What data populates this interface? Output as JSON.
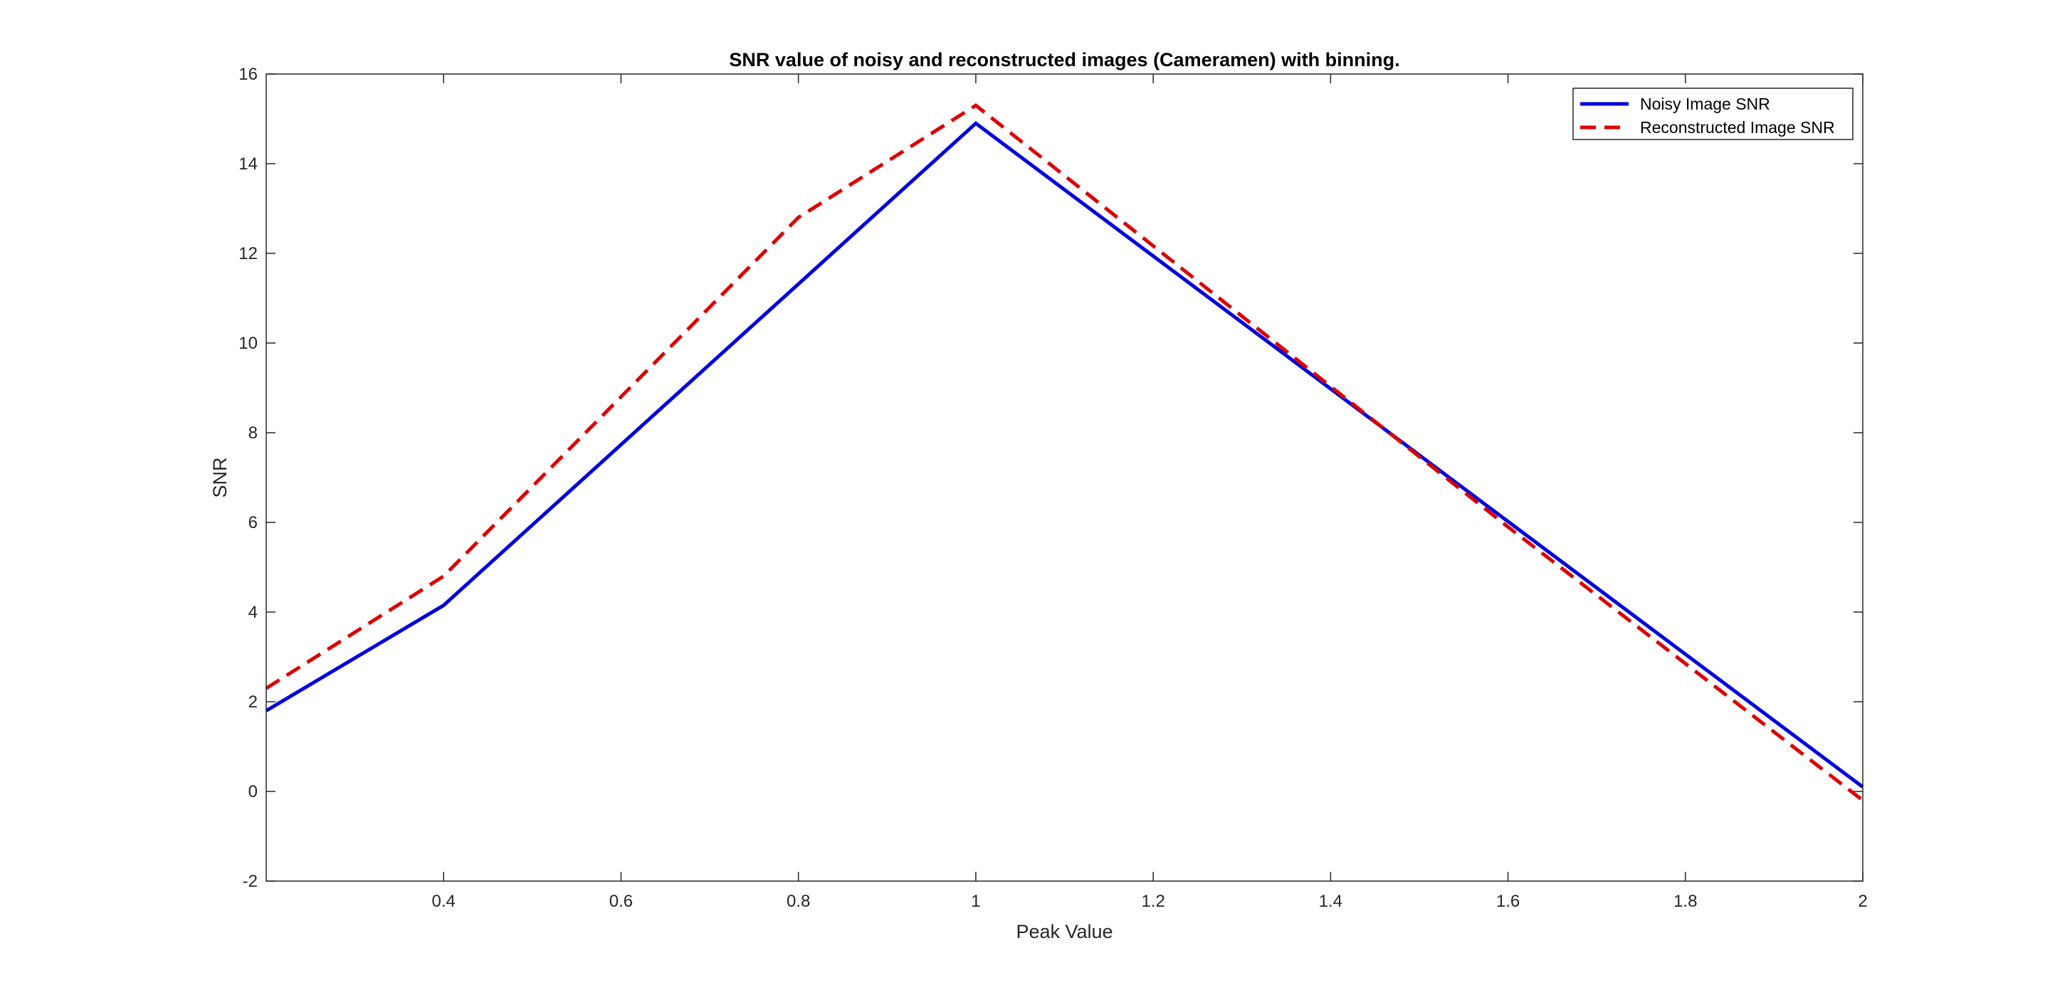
{
  "chart_data": {
    "type": "line",
    "title": "SNR value of noisy and reconstructed images (Cameramen) with binning.",
    "xlabel": "Peak Value",
    "ylabel": "SNR",
    "xlim": [
      0.2,
      2
    ],
    "ylim": [
      -2,
      16
    ],
    "xticks": [
      0.4,
      0.6,
      0.8,
      1,
      1.2,
      1.4,
      1.6,
      1.8,
      2
    ],
    "xtick_labels": [
      "0.4",
      "0.6",
      "0.8",
      "1",
      "1.2",
      "1.4",
      "1.6",
      "1.8",
      "2"
    ],
    "yticks": [
      -2,
      0,
      2,
      4,
      6,
      8,
      10,
      12,
      14,
      16
    ],
    "ytick_labels": [
      "-2",
      "0",
      "2",
      "4",
      "6",
      "8",
      "10",
      "12",
      "14",
      "16"
    ],
    "grid": false,
    "legend_position": "top-right",
    "series": [
      {
        "name": "Noisy Image SNR",
        "color": "#0000dd",
        "style": "solid",
        "x": [
          0.2,
          0.4,
          1,
          2
        ],
        "y": [
          1.8,
          4.15,
          14.9,
          0.1
        ]
      },
      {
        "name": "Reconstructed Image SNR",
        "color": "#dd0000",
        "style": "dashed",
        "x": [
          0.2,
          0.4,
          0.8,
          1,
          1.6,
          2
        ],
        "y": [
          2.3,
          4.8,
          12.8,
          15.3,
          5.9,
          -0.2
        ]
      }
    ]
  }
}
